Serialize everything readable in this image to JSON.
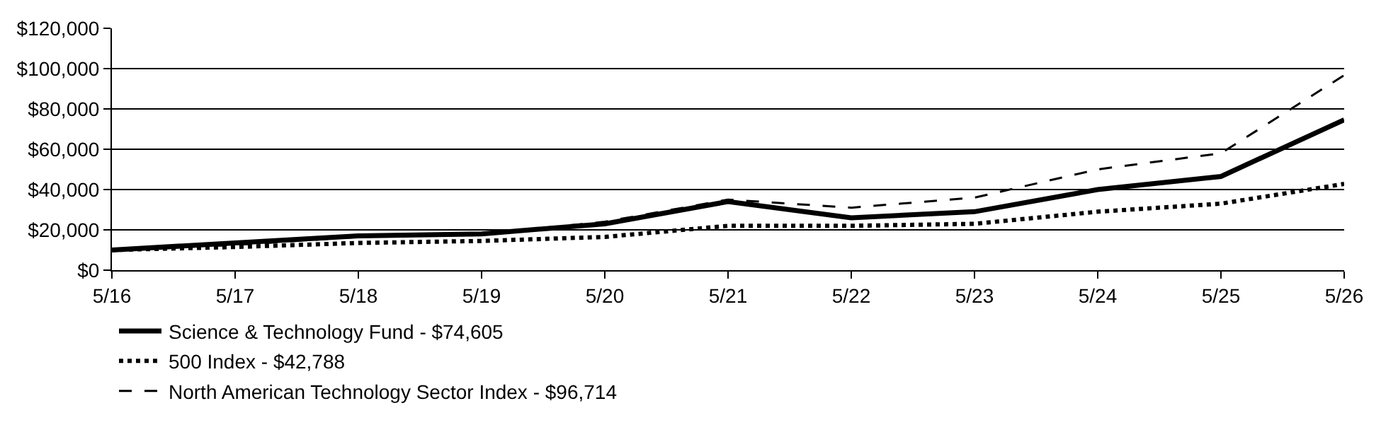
{
  "chart_data": {
    "type": "line",
    "categories": [
      "5/16",
      "5/17",
      "5/18",
      "5/19",
      "5/20",
      "5/21",
      "5/22",
      "5/23",
      "5/24",
      "5/25",
      "5/26"
    ],
    "series": [
      {
        "name": "Science & Technology Fund - $74,605",
        "color": "#000000",
        "line_style": "solid",
        "values": [
          10000,
          13500,
          17000,
          18000,
          23000,
          34000,
          26000,
          29000,
          40000,
          46500,
          74605
        ]
      },
      {
        "name": "500 Index - $42,788",
        "color": "#000000",
        "line_style": "dotted",
        "values": [
          10000,
          11500,
          13500,
          14500,
          16500,
          22000,
          22000,
          23000,
          29000,
          33000,
          42788
        ]
      },
      {
        "name": "North American Technology Sector Index - $96,714",
        "color": "#000000",
        "line_style": "dashed",
        "values": [
          10000,
          12500,
          16500,
          18000,
          24000,
          35000,
          31000,
          36000,
          50000,
          58000,
          96714
        ]
      }
    ],
    "ylim": [
      0,
      120000
    ],
    "yticks": [
      {
        "value": 0,
        "label": "$0"
      },
      {
        "value": 20000,
        "label": "$20,000"
      },
      {
        "value": 40000,
        "label": "$40,000"
      },
      {
        "value": 60000,
        "label": "$60,000"
      },
      {
        "value": 80000,
        "label": "$80,000"
      },
      {
        "value": 100000,
        "label": "$100,000"
      },
      {
        "value": 120000,
        "label": "$120,000"
      }
    ],
    "grid": "y",
    "legend": "bottom left",
    "marker": "none"
  }
}
